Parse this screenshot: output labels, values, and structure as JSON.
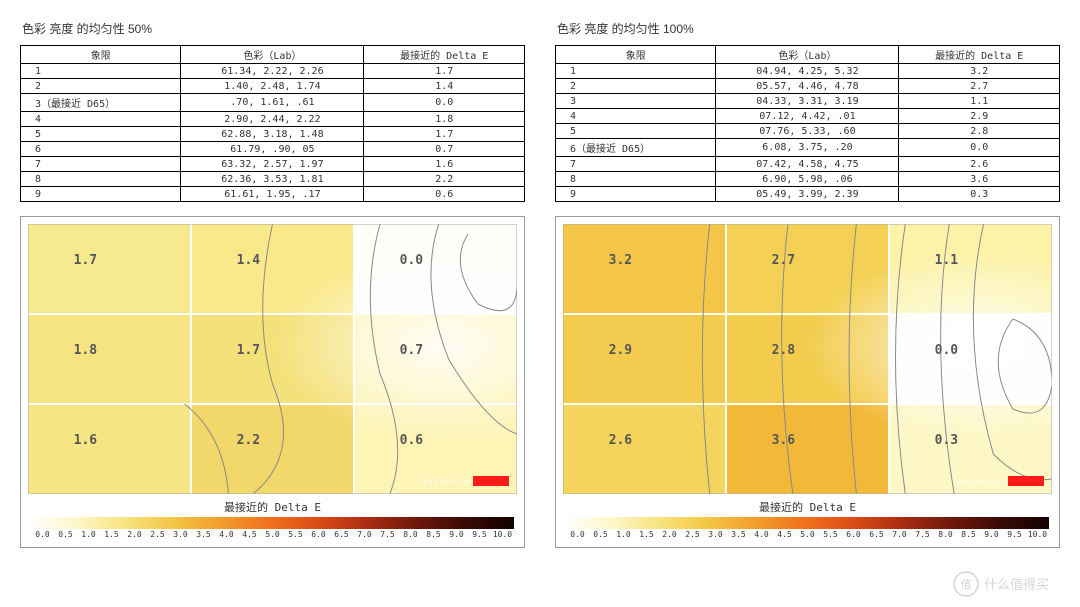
{
  "left": {
    "title": "色彩 亮度 的均匀性 50%",
    "table": {
      "columns": [
        "象限",
        "色彩（Lab）",
        "最接近的 Delta E"
      ],
      "rows": [
        {
          "label": "1",
          "lab": "61.34,   2.22,   2.26",
          "de": "1.7"
        },
        {
          "label": "2",
          "lab": "1.40,   2.48,   1.74",
          "de": "1.4"
        },
        {
          "label": "3（最接近 D65）",
          "lab": ".70,   1.61,    .61",
          "de": "0.0"
        },
        {
          "label": "4",
          "lab": "2.90,   2.44,   2.22",
          "de": "1.8"
        },
        {
          "label": "5",
          "lab": "62.88,   3.18,   1.48",
          "de": "1.7"
        },
        {
          "label": "6",
          "lab": "61.79,    .90,    05",
          "de": "0.7"
        },
        {
          "label": "7",
          "lab": "63.32,   2.57,   1.97",
          "de": "1.6"
        },
        {
          "label": "8",
          "lab": "62.36,   3.53,   1.81",
          "de": "2.2"
        },
        {
          "label": "9",
          "lab": "61.61,   1.95,    .17",
          "de": "0.6"
        }
      ]
    },
    "heatmap": {
      "grid_values": [
        [
          "1.7",
          "1.4",
          "0.0"
        ],
        [
          "1.8",
          "1.7",
          "0.7"
        ],
        [
          "1.6",
          "2.2",
          "0.6"
        ]
      ],
      "cell_colors": [
        [
          "#f7e98e",
          "#fae98a",
          "#fefefb"
        ],
        [
          "#f6e482",
          "#f4e17a",
          "#fdf4b8"
        ],
        [
          "#f6e583",
          "#f2d86a",
          "#fdf4b6"
        ]
      ],
      "contour_color": "#888888",
      "grid_line_color": "#ffffff",
      "border_color": "#aaaaaa"
    },
    "axis_title": "最接近的 Delta E"
  },
  "right": {
    "title": "色彩 亮度 的均匀性 100%",
    "table": {
      "columns": [
        "象限",
        "色彩（Lab）",
        "最接近的 Delta E"
      ],
      "rows": [
        {
          "label": "1",
          "lab": "04.94,   4.25,   5.32",
          "de": "3.2"
        },
        {
          "label": "2",
          "lab": "05.57,   4.46,   4.78",
          "de": "2.7"
        },
        {
          "label": "3",
          "lab": "04.33,   3.31,   3.19",
          "de": "1.1"
        },
        {
          "label": "4",
          "lab": "07.12,   4.42,    .01",
          "de": "2.9"
        },
        {
          "label": "5",
          "lab": "07.76,   5.33,    .60",
          "de": "2.8"
        },
        {
          "label": "6（最接近 D65）",
          "lab": "6.08,   3.75,    .20",
          "de": "0.0"
        },
        {
          "label": "7",
          "lab": "07.42,   4.58,   4.75",
          "de": "2.6"
        },
        {
          "label": "8",
          "lab": "6.90,   5.98,    .06",
          "de": "3.6"
        },
        {
          "label": "9",
          "lab": "05.49,   3.99,   2.39",
          "de": "0.3"
        }
      ]
    },
    "heatmap": {
      "grid_values": [
        [
          "3.2",
          "2.7",
          "1.1"
        ],
        [
          "2.9",
          "2.8",
          "0.0"
        ],
        [
          "2.6",
          "3.6",
          "0.3"
        ]
      ],
      "cell_colors": [
        [
          "#f4c648",
          "#f4d154",
          "#fcf2a8"
        ],
        [
          "#f3cb4e",
          "#f3cc4e",
          "#fefefc"
        ],
        [
          "#f4d45c",
          "#f2b939",
          "#fdf7c6"
        ]
      ],
      "contour_color": "#888888",
      "grid_line_color": "#ffffff",
      "border_color": "#aaaaaa"
    },
    "axis_title": "最接近的 Delta E"
  },
  "colorbar": {
    "ticks": [
      "0.0",
      "0.5",
      "1.0",
      "1.5",
      "2.0",
      "2.5",
      "3.0",
      "3.5",
      "4.0",
      "4.5",
      "5.0",
      "5.5",
      "6.0",
      "6.5",
      "7.0",
      "7.5",
      "8.0",
      "8.5",
      "9.0",
      "9.5",
      "10.0"
    ],
    "stops": [
      {
        "p": 0,
        "c": "#ffffff"
      },
      {
        "p": 10,
        "c": "#fdf6c5"
      },
      {
        "p": 20,
        "c": "#f7e27a"
      },
      {
        "p": 30,
        "c": "#f4c342"
      },
      {
        "p": 40,
        "c": "#f29a2a"
      },
      {
        "p": 50,
        "c": "#ef6f1e"
      },
      {
        "p": 60,
        "c": "#d94a16"
      },
      {
        "p": 70,
        "c": "#a82c12"
      },
      {
        "p": 80,
        "c": "#6e170b"
      },
      {
        "p": 90,
        "c": "#3a0a05"
      },
      {
        "p": 100,
        "c": "#120202"
      }
    ]
  },
  "brand_watermark": "什么值得买"
}
